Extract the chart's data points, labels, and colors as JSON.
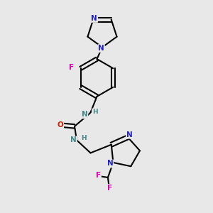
{
  "bg_color": "#e8e8e8",
  "bond_color": "#000000",
  "bond_width": 1.5,
  "atoms": {
    "N_blue": "#2222cc",
    "N_teal": "#448888",
    "F_pink": "#dd00aa",
    "O_red": "#cc2200"
  },
  "layout": {
    "xlim": [
      0,
      10
    ],
    "ylim": [
      0,
      10
    ]
  }
}
